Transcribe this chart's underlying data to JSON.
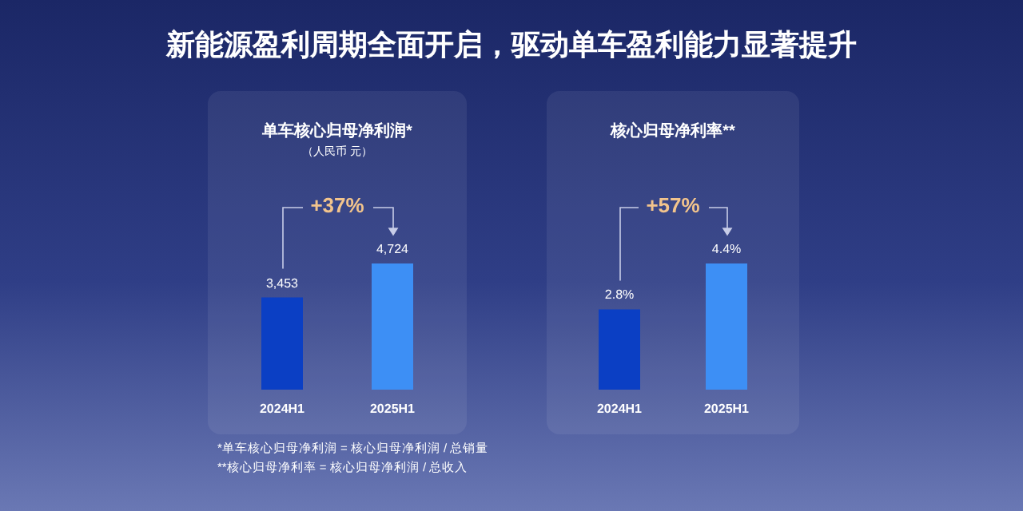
{
  "chart_data": [
    {
      "type": "other",
      "title": "新能源盈利周期全面开启，驱动单车盈利能力显著提升",
      "annotations": [
        "*单车核心归母净利润 = 核心归母净利润 / 总销量",
        "**核心归母净利率 = 核心归母净利润 / 总收入"
      ]
    },
    {
      "type": "bar",
      "title": "单车核心归母净利润*",
      "subtitle": "（人民币 元）",
      "categories": [
        "2024H1",
        "2025H1"
      ],
      "values": [
        3453,
        4724
      ],
      "value_labels": [
        "3,453",
        "4,724"
      ],
      "colors": [
        "#0b3fc4",
        "#3d8ff5"
      ],
      "annotations": [
        "+37%"
      ]
    },
    {
      "type": "bar",
      "title": "核心归母净利率**",
      "categories": [
        "2024H1",
        "2025H1"
      ],
      "values": [
        2.8,
        4.4
      ],
      "value_labels": [
        "2.8%",
        "4.4%"
      ],
      "colors": [
        "#0b3fc4",
        "#3d8ff5"
      ],
      "annotations": [
        "+57%"
      ]
    }
  ]
}
